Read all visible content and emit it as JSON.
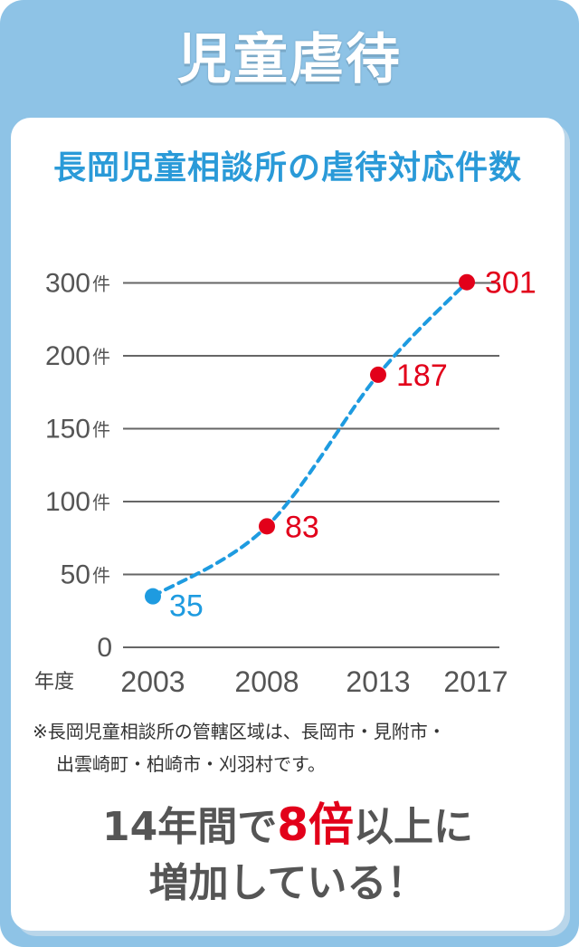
{
  "banner": {
    "title": "児童虐待"
  },
  "chart_data": {
    "type": "line",
    "title": "長岡児童相談所の虐待対応件数",
    "xlabel": "年度",
    "x": [
      "2003",
      "2008",
      "2013",
      "2017"
    ],
    "series": [
      {
        "values": [
          35,
          83,
          187,
          301
        ],
        "label_colors": [
          "#1e9be0",
          "#e2001a",
          "#e2001a",
          "#e2001a"
        ]
      }
    ],
    "y_ticks": [
      {
        "value": 0,
        "label": "0",
        "unit": ""
      },
      {
        "value": 50,
        "label": "50",
        "unit": "件"
      },
      {
        "value": 100,
        "label": "100",
        "unit": "件"
      },
      {
        "value": 150,
        "label": "150",
        "unit": "件"
      },
      {
        "value": 200,
        "label": "200",
        "unit": "件"
      },
      {
        "value": 300,
        "label": "300",
        "unit": "件"
      }
    ],
    "y_axis_note": "non-linear scale: gap between 200 and 300 drawn same as 50-unit steps",
    "grid": true,
    "line_color": "#1e9be0",
    "point_color": "#e2001a",
    "first_point_color": "#1e9be0",
    "ylim": [
      0,
      300
    ]
  },
  "note": {
    "line1": "※長岡児童相談所の管轄区域は、長岡市・見附市・",
    "line2": "出雲崎町・柏崎市・刈羽村です。"
  },
  "conclusion": {
    "part1": "14年間で",
    "highlight": "8倍",
    "part2": "以上に",
    "line2": "増加している！"
  }
}
